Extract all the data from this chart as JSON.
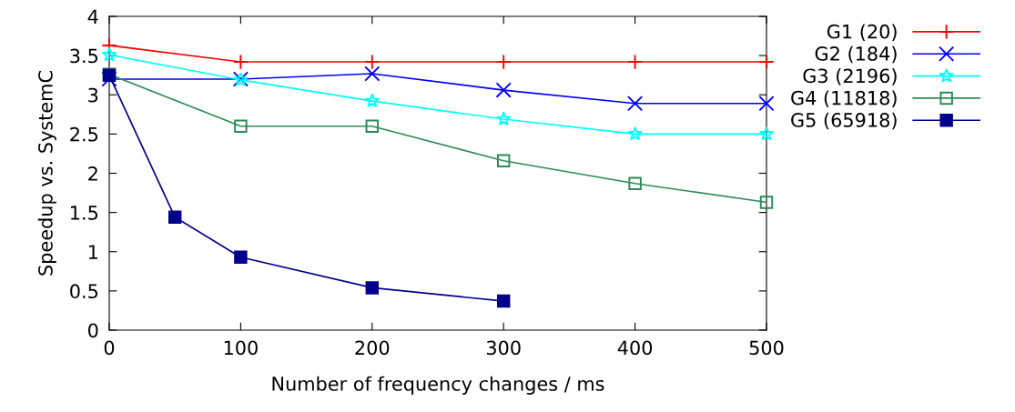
{
  "chart_data": {
    "type": "line",
    "xlabel": "Number of frequency changes / ms",
    "ylabel": "Speedup vs. SystemC",
    "xlim": [
      0,
      500
    ],
    "xticks": [
      0,
      100,
      200,
      300,
      400,
      500
    ],
    "ylim": [
      0,
      4
    ],
    "yticks": [
      0,
      0.5,
      1,
      1.5,
      2,
      2.5,
      3,
      3.5,
      4
    ],
    "grid": false,
    "legend": "right",
    "series": [
      {
        "name": "G1 (20)",
        "color": "#ff0000",
        "marker": "plus",
        "x": [
          0,
          100,
          200,
          300,
          400,
          500
        ],
        "values": [
          3.63,
          3.42,
          3.42,
          3.42,
          3.42,
          3.42
        ]
      },
      {
        "name": "G2 (184)",
        "color": "#0000ff",
        "marker": "cross",
        "x": [
          0,
          100,
          200,
          300,
          400,
          500
        ],
        "values": [
          3.2,
          3.2,
          3.27,
          3.06,
          2.89,
          2.89
        ]
      },
      {
        "name": "G3 (2196)",
        "color": "#00ffff",
        "marker": "star",
        "x": [
          0,
          100,
          200,
          300,
          400,
          500
        ],
        "values": [
          3.51,
          3.19,
          2.92,
          2.69,
          2.5,
          2.5
        ]
      },
      {
        "name": "G4 (11818)",
        "color": "#2e8b57",
        "marker": "square",
        "x": [
          0,
          100,
          200,
          300,
          400,
          500
        ],
        "values": [
          3.26,
          2.6,
          2.6,
          2.16,
          1.87,
          1.63
        ]
      },
      {
        "name": "G5 (65918)",
        "color": "#00008b",
        "marker": "square",
        "x": [
          0,
          50,
          100,
          200,
          300
        ],
        "values": [
          3.25,
          1.44,
          0.93,
          0.54,
          0.37
        ]
      }
    ]
  }
}
